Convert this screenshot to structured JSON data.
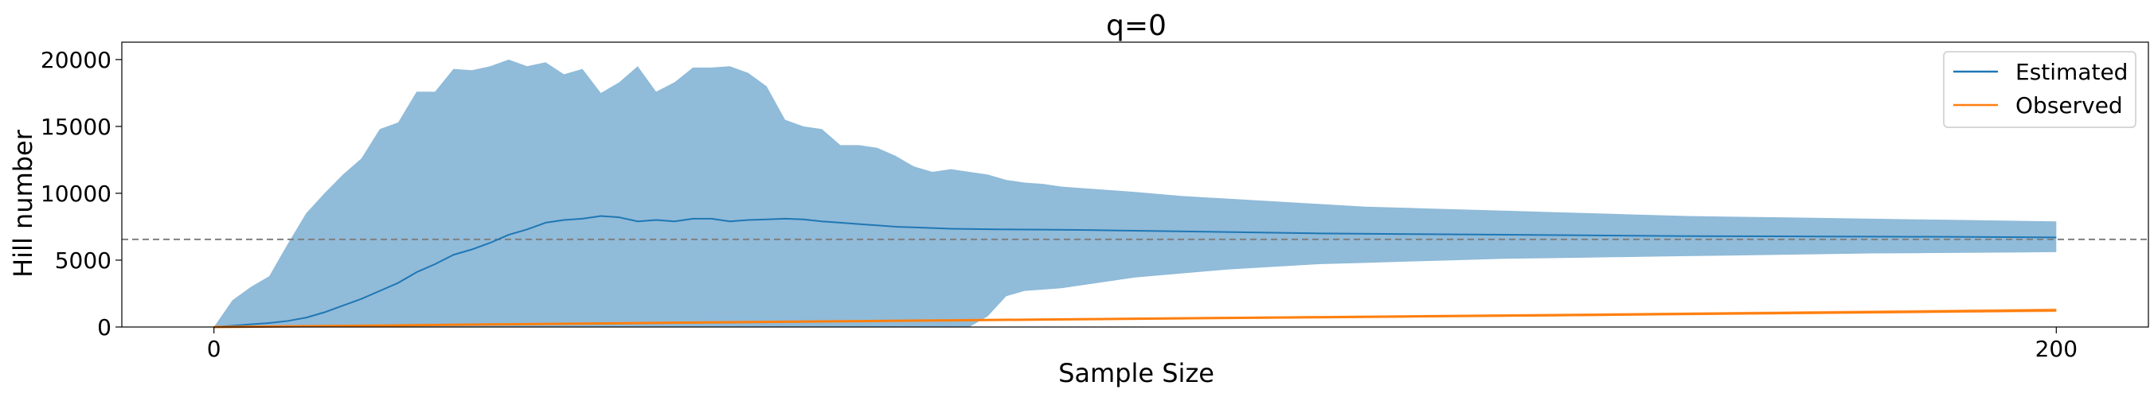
{
  "chart_data": {
    "type": "area",
    "title": "q=0",
    "xlabel": "Sample Size",
    "ylabel": "Hill number",
    "xlim": [
      -10,
      210
    ],
    "ylim": [
      0,
      21300
    ],
    "x_ticks": [
      0,
      200
    ],
    "x_tick_labels": [
      "0",
      "200"
    ],
    "y_ticks": [
      0,
      5000,
      10000,
      15000,
      20000
    ],
    "y_tick_labels": [
      "0",
      "5000",
      "10000",
      "15000",
      "20000"
    ],
    "grid": false,
    "legend": {
      "placement": "top-right",
      "entries": [
        {
          "label": "Estimated",
          "color": "#1f77b4"
        },
        {
          "label": "Observed",
          "color": "#ff7f0e"
        }
      ]
    },
    "reference_line": {
      "y": 6550,
      "style": "dashed",
      "color": "#808080"
    },
    "band_color": "#90bbd9",
    "series": [
      {
        "name": "Estimated",
        "color": "#1f77b4",
        "x": [
          0,
          2,
          4,
          6,
          8,
          10,
          12,
          14,
          16,
          18,
          20,
          22,
          24,
          26,
          28,
          30,
          32,
          34,
          36,
          38,
          40,
          42,
          44,
          46,
          48,
          50,
          52,
          54,
          56,
          58,
          60,
          62,
          64,
          66,
          68,
          70,
          72,
          74,
          76,
          78,
          80,
          85,
          90,
          95,
          100,
          110,
          120,
          130,
          140,
          150,
          160,
          170,
          180,
          190,
          200
        ],
        "y": [
          0,
          100,
          200,
          300,
          450,
          700,
          1100,
          1600,
          2100,
          2700,
          3300,
          4100,
          4700,
          5400,
          5800,
          6300,
          6900,
          7300,
          7800,
          8000,
          8100,
          8300,
          8200,
          7900,
          8000,
          7900,
          8100,
          8100,
          7900,
          8000,
          8050,
          8100,
          8050,
          7900,
          7800,
          7700,
          7600,
          7500,
          7450,
          7400,
          7350,
          7300,
          7280,
          7250,
          7200,
          7100,
          7000,
          6950,
          6900,
          6850,
          6800,
          6780,
          6760,
          6740,
          6700
        ]
      },
      {
        "name": "Observed",
        "color": "#ff7f0e",
        "x": [
          0,
          10,
          20,
          30,
          40,
          50,
          60,
          70,
          80,
          90,
          100,
          110,
          120,
          130,
          140,
          150,
          160,
          170,
          180,
          190,
          200
        ],
        "y": [
          0,
          60,
          120,
          190,
          250,
          320,
          380,
          440,
          500,
          560,
          620,
          680,
          730,
          790,
          850,
          910,
          980,
          1040,
          1110,
          1180,
          1250
        ]
      }
    ],
    "band": {
      "x": [
        0,
        2,
        4,
        6,
        8,
        10,
        12,
        14,
        16,
        18,
        20,
        22,
        24,
        26,
        28,
        30,
        32,
        34,
        36,
        38,
        40,
        42,
        44,
        46,
        48,
        50,
        52,
        54,
        56,
        58,
        60,
        62,
        64,
        66,
        68,
        70,
        72,
        74,
        76,
        78,
        80,
        82,
        84,
        86,
        88,
        90,
        92,
        94,
        96,
        98,
        100,
        105,
        110,
        115,
        120,
        125,
        130,
        135,
        140,
        145,
        150,
        155,
        160,
        165,
        170,
        175,
        180,
        185,
        190,
        195,
        200
      ],
      "upper": [
        0,
        2000,
        3000,
        3800,
        6200,
        8500,
        10000,
        11400,
        12600,
        14800,
        15300,
        17600,
        17600,
        19300,
        19200,
        19500,
        20000,
        19500,
        19800,
        18900,
        19300,
        17500,
        18300,
        19500,
        17600,
        18300,
        19400,
        19400,
        19500,
        19000,
        18000,
        15500,
        15000,
        14800,
        13600,
        13600,
        13400,
        12800,
        12000,
        11600,
        11800,
        11600,
        11400,
        11000,
        10800,
        10700,
        10500,
        10400,
        10300,
        10200,
        10100,
        9800,
        9600,
        9400,
        9200,
        9000,
        8900,
        8800,
        8700,
        8600,
        8500,
        8400,
        8300,
        8250,
        8200,
        8150,
        8100,
        8050,
        8000,
        7950,
        7900
      ],
      "lower": [
        0,
        0,
        0,
        0,
        0,
        0,
        0,
        0,
        0,
        0,
        0,
        0,
        0,
        0,
        0,
        0,
        0,
        0,
        0,
        0,
        0,
        0,
        0,
        0,
        0,
        0,
        0,
        0,
        0,
        0,
        0,
        0,
        0,
        0,
        0,
        0,
        0,
        0,
        0,
        0,
        0,
        0,
        800,
        2300,
        2700,
        2800,
        2900,
        3100,
        3300,
        3500,
        3700,
        4000,
        4300,
        4500,
        4700,
        4800,
        4900,
        5000,
        5100,
        5150,
        5200,
        5250,
        5300,
        5350,
        5400,
        5450,
        5500,
        5520,
        5550,
        5570,
        5600
      ]
    },
    "observed_band": {
      "x": [
        0,
        50,
        100,
        150,
        200
      ],
      "upper": [
        0,
        360,
        700,
        1020,
        1380
      ],
      "lower": [
        0,
        280,
        560,
        820,
        1120
      ]
    }
  }
}
